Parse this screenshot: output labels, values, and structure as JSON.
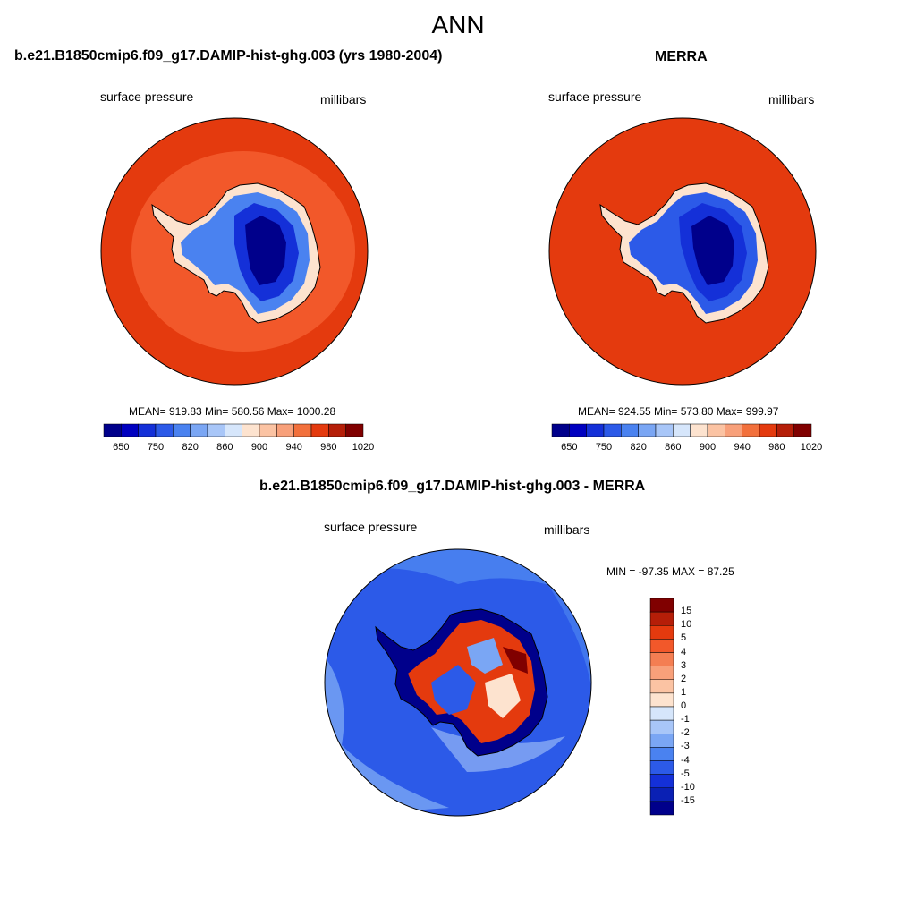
{
  "page": {
    "title": "ANN"
  },
  "panels": [
    {
      "title": "b.e21.B1850cmip6.f09_g17.DAMIP-hist-ghg.003 (yrs 1980-2004)",
      "left_label": "surface pressure",
      "right_label": "millibars",
      "stats": "MEAN= 919.83  Min= 580.56  Max= 1000.28"
    },
    {
      "title": "MERRA",
      "left_label": "surface pressure",
      "right_label": "millibars",
      "stats": "MEAN= 924.55  Min= 573.80  Max= 999.97"
    },
    {
      "title": "b.e21.B1850cmip6.f09_g17.DAMIP-hist-ghg.003 - MERRA",
      "left_label": "surface pressure",
      "right_label": "millibars",
      "stats": "MIN = -97.35 MAX =  87.25"
    }
  ],
  "chart_data": [
    {
      "type": "heatmap",
      "projection": "south polar stereographic",
      "title": "b.e21.B1850cmip6.f09_g17.DAMIP-hist-ghg.003 (yrs 1980-2004)",
      "variable": "surface pressure",
      "units": "millibars",
      "mean": 919.83,
      "min": 580.56,
      "max": 1000.28,
      "colorbar": {
        "orientation": "horizontal",
        "levels": [
          650,
          700,
          750,
          800,
          820,
          840,
          860,
          880,
          900,
          920,
          940,
          960,
          980,
          1000,
          1020
        ],
        "tick_labels": [
          "650",
          "750",
          "820",
          "860",
          "900",
          "940",
          "980",
          "1020"
        ],
        "colors": [
          "#00008b",
          "#0000c0",
          "#1430d8",
          "#2c5ae8",
          "#4a82f0",
          "#7aa6f4",
          "#a8c6f8",
          "#d6e6fb",
          "#fde3cf",
          "#fbc3a3",
          "#f8a07a",
          "#f2703c",
          "#e43a0e",
          "#b51e08",
          "#800000"
        ]
      }
    },
    {
      "type": "heatmap",
      "projection": "south polar stereographic",
      "title": "MERRA",
      "variable": "surface pressure",
      "units": "millibars",
      "mean": 924.55,
      "min": 573.8,
      "max": 999.97,
      "colorbar": {
        "orientation": "horizontal",
        "levels": [
          650,
          700,
          750,
          800,
          820,
          840,
          860,
          880,
          900,
          920,
          940,
          960,
          980,
          1000,
          1020
        ],
        "tick_labels": [
          "650",
          "750",
          "820",
          "860",
          "900",
          "940",
          "980",
          "1020"
        ],
        "colors": [
          "#00008b",
          "#0000c0",
          "#1430d8",
          "#2c5ae8",
          "#4a82f0",
          "#7aa6f4",
          "#a8c6f8",
          "#d6e6fb",
          "#fde3cf",
          "#fbc3a3",
          "#f8a07a",
          "#f2703c",
          "#e43a0e",
          "#b51e08",
          "#800000"
        ]
      }
    },
    {
      "type": "heatmap",
      "projection": "south polar stereographic",
      "title": "b.e21.B1850cmip6.f09_g17.DAMIP-hist-ghg.003 - MERRA",
      "variable": "surface pressure",
      "units": "millibars",
      "min": -97.35,
      "max": 87.25,
      "colorbar": {
        "orientation": "vertical",
        "levels": [
          15,
          10,
          5,
          4,
          3,
          2,
          1,
          0,
          -1,
          -2,
          -3,
          -4,
          -5,
          -10,
          -15
        ],
        "tick_labels": [
          "15",
          "10",
          "5",
          "4",
          "3",
          "2",
          "1",
          "0",
          "-1",
          "-2",
          "-3",
          "-4",
          "-5",
          "-10",
          "-15"
        ],
        "colors": [
          "#800000",
          "#b51e08",
          "#e43a0e",
          "#f2582a",
          "#f47e52",
          "#f8a07a",
          "#fbc3a3",
          "#fde3cf",
          "#d6e6fb",
          "#a8c6f8",
          "#7aa6f4",
          "#4a82f0",
          "#2c5ae8",
          "#1430d8",
          "#0a20b4",
          "#00008b"
        ]
      }
    }
  ]
}
